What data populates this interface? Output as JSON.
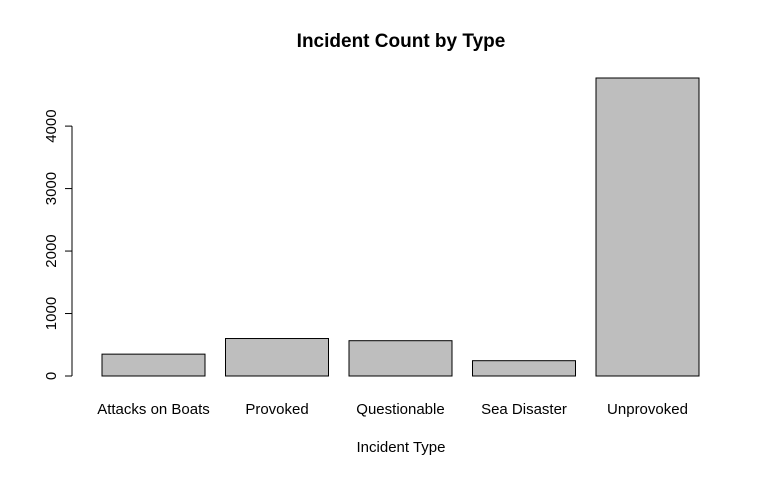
{
  "chart_data": {
    "type": "bar",
    "title": "Incident Count by Type",
    "xlabel": "Incident Type",
    "ylabel": "",
    "categories": [
      "Attacks on Boats",
      "Provoked",
      "Questionable",
      "Sea Disaster",
      "Unprovoked"
    ],
    "values": [
      350,
      600,
      565,
      245,
      4770
    ],
    "yticks": [
      0,
      1000,
      2000,
      3000,
      4000
    ],
    "ylim": [
      0,
      4770
    ],
    "grid": false,
    "legend": "none",
    "bar_color": "#bebebe",
    "bar_border_color": "#000000"
  }
}
